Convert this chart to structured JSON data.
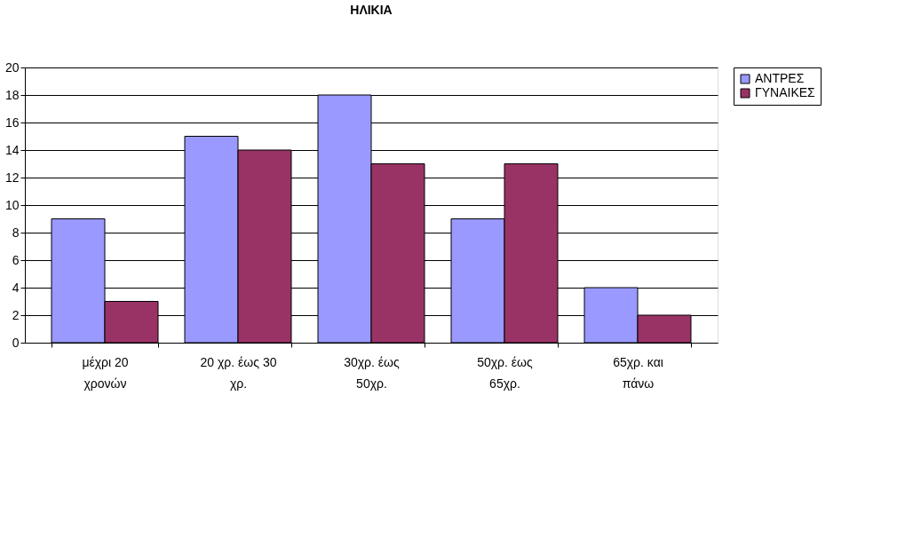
{
  "chart_data": {
    "type": "bar",
    "title": "ΗΛΙΚΙΑ",
    "categories": [
      "μέχρι 20 χρονών",
      "20 χρ. έως 30 χρ.",
      "30χρ. έως 50χρ.",
      "50χρ. έως 65χρ.",
      "65χρ. και πάνω"
    ],
    "series": [
      {
        "name": "ΑΝΤΡΕΣ",
        "color": "#9999ff",
        "values": [
          9,
          15,
          18,
          9,
          4
        ]
      },
      {
        "name": "ΓΥΝΑΙΚΕΣ",
        "color": "#993366",
        "values": [
          3,
          14,
          13,
          13,
          2
        ]
      }
    ],
    "ylim": [
      0,
      20
    ],
    "yticks": [
      0,
      2,
      4,
      6,
      8,
      10,
      12,
      14,
      16,
      18,
      20
    ],
    "grid": "y",
    "legend": "right"
  }
}
